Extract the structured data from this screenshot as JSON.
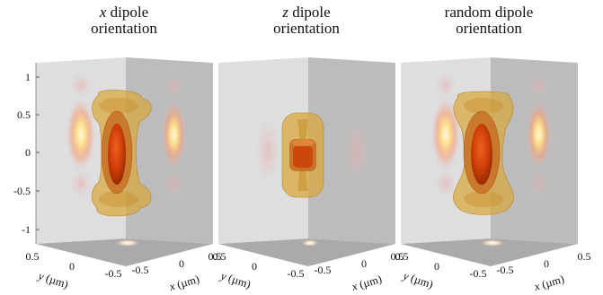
{
  "panels": [
    {
      "title_line1": "dipole",
      "title_italic": "x",
      "title_line2": "orientation",
      "shape": "x"
    },
    {
      "title_line1": "dipole",
      "title_italic": "z",
      "title_line2": "orientation",
      "shape": "z"
    },
    {
      "title_line1": "random dipole",
      "title_italic": "",
      "title_line2": "orientation",
      "shape": "random"
    }
  ],
  "z_axis_ticks": [
    "1",
    "0.5",
    "0",
    "-0.5",
    "-1"
  ],
  "y_axis": {
    "ticks": [
      "0.5",
      "0",
      "-0.5"
    ],
    "label_var": "y",
    "label_unit": "(µm)"
  },
  "x_axis": {
    "ticks": [
      "-0.5",
      "0",
      "0.5"
    ],
    "label_var": "x",
    "label_unit": "(µm)"
  },
  "colors": {
    "left_wall": "#dedede",
    "right_wall": "#bcbcbc",
    "floor": "#aaaaaa",
    "outer_surface": "#d8a83e",
    "inner_surface": "#c66a1e",
    "core": "#cd3e08",
    "glow": "#ffe08a"
  }
}
